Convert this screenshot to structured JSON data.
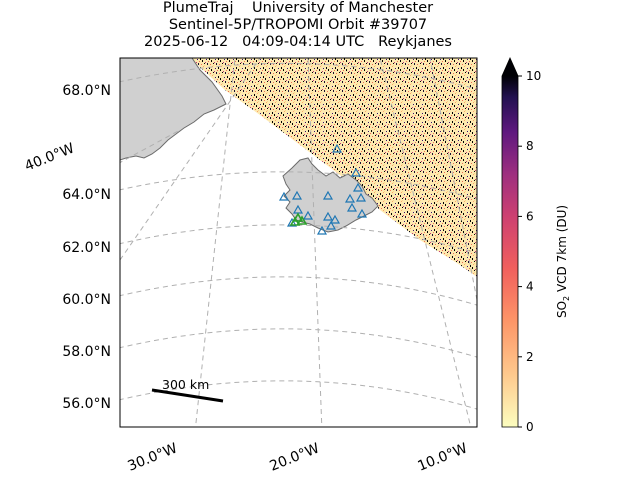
{
  "title": {
    "line1": "PlumeTraj    University of Manchester",
    "line2": "Sentinel-5P/TROPOMI Orbit #39707",
    "line3": "2025-06-12   04:09-04:14 UTC   Reykjanes"
  },
  "map": {
    "lat_labels": [
      "68.0°N",
      "64.0°N",
      "62.0°N",
      "60.0°N",
      "58.0°N",
      "56.0°N"
    ],
    "lon_labels": [
      "40.0°W",
      "30.0°W",
      "20.0°W",
      "10.0°W"
    ],
    "scale_bar_label": "300 km",
    "land_color": "#d0d0d0",
    "volcano_marker_color": "#1f77b4",
    "active_volcano_color": "#2ca02c"
  },
  "colorbar": {
    "label_main": "SO",
    "label_sub": "2",
    "label_rest": " VCD 7km (DU)",
    "ticks": [
      "0",
      "2",
      "4",
      "6",
      "8",
      "10"
    ],
    "min": 0,
    "max": 10,
    "colormap": "magma_r"
  }
}
